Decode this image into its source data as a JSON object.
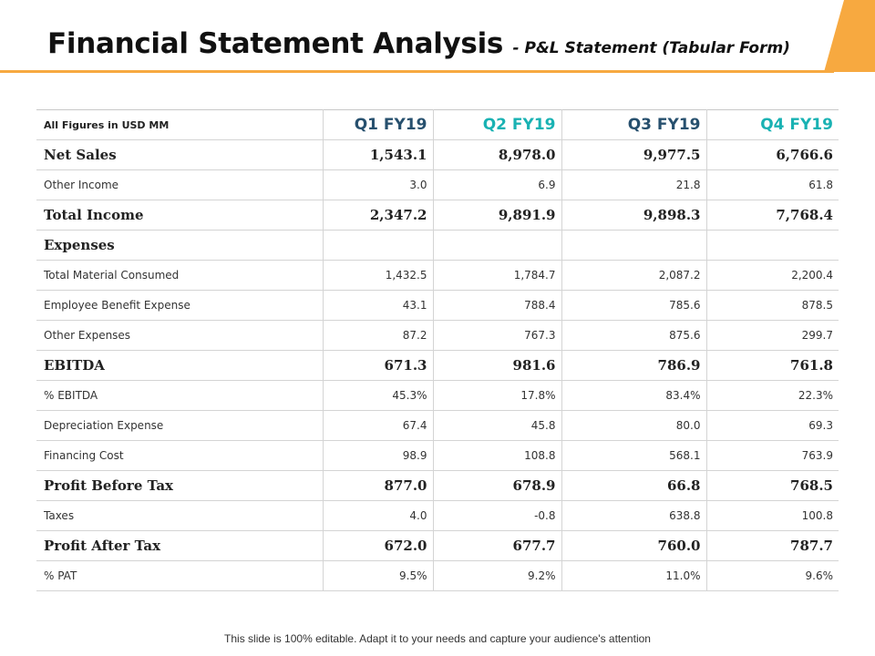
{
  "header": {
    "title": "Financial Statement Analysis",
    "subtitle": "- P&L Statement (Tabular Form)",
    "accent_color": "#f7a940"
  },
  "table": {
    "header_label": "All Figures in USD MM",
    "columns": [
      {
        "label": "Q1 FY19",
        "color": "#27506e"
      },
      {
        "label": "Q2 FY19",
        "color": "#19b2b3"
      },
      {
        "label": "Q3 FY19",
        "color": "#27506e"
      },
      {
        "label": "Q4 FY19",
        "color": "#19b2b3"
      }
    ],
    "rows": [
      {
        "label": "Net Sales",
        "style": "major",
        "values": [
          "1,543.1",
          "8,978.0",
          "9,977.5",
          "6,766.6"
        ]
      },
      {
        "label": "Other Income",
        "style": "minor",
        "values": [
          "3.0",
          "6.9",
          "21.8",
          "61.8"
        ]
      },
      {
        "label": "Total Income",
        "style": "major",
        "values": [
          "2,347.2",
          "9,891.9",
          "9,898.3",
          "7,768.4"
        ]
      },
      {
        "label": "Expenses",
        "style": "major",
        "values": [
          "",
          "",
          "",
          ""
        ]
      },
      {
        "label": "Total Material Consumed",
        "style": "minor",
        "values": [
          "1,432.5",
          "1,784.7",
          "2,087.2",
          "2,200.4"
        ]
      },
      {
        "label": "Employee  Benefit Expense",
        "style": "minor",
        "values": [
          "43.1",
          "788.4",
          "785.6",
          "878.5"
        ]
      },
      {
        "label": "Other Expenses",
        "style": "minor",
        "values": [
          "87.2",
          "767.3",
          "875.6",
          "299.7"
        ]
      },
      {
        "label": "EBITDA",
        "style": "major",
        "values": [
          "671.3",
          "981.6",
          "786.9",
          "761.8"
        ]
      },
      {
        "label": "% EBITDA",
        "style": "minor",
        "values": [
          "45.3%",
          "17.8%",
          "83.4%",
          "22.3%"
        ]
      },
      {
        "label": "Depreciation  Expense",
        "style": "minor",
        "values": [
          "67.4",
          "45.8",
          "80.0",
          "69.3"
        ]
      },
      {
        "label": "Financing Cost",
        "style": "minor",
        "values": [
          "98.9",
          "108.8",
          "568.1",
          "763.9"
        ]
      },
      {
        "label": "Profit Before Tax",
        "style": "major",
        "values": [
          "877.0",
          "678.9",
          "66.8",
          "768.5"
        ]
      },
      {
        "label": "Taxes",
        "style": "minor",
        "values": [
          "4.0",
          "-0.8",
          "638.8",
          "100.8"
        ]
      },
      {
        "label": "Profit After Tax",
        "style": "major",
        "values": [
          "672.0",
          "677.7",
          "760.0",
          "787.7"
        ]
      },
      {
        "label": "% PAT",
        "style": "minor",
        "values": [
          "9.5%",
          "9.2%",
          "11.0%",
          "9.6%"
        ]
      }
    ]
  },
  "footer": {
    "text": "This slide is 100% editable. Adapt it to your needs and capture your audience's attention"
  }
}
